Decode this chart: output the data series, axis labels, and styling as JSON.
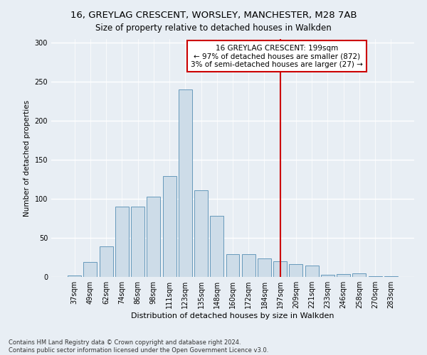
{
  "title": "16, GREYLAG CRESCENT, WORSLEY, MANCHESTER, M28 7AB",
  "subtitle": "Size of property relative to detached houses in Walkden",
  "xlabel": "Distribution of detached houses by size in Walkden",
  "ylabel": "Number of detached properties",
  "categories": [
    "37sqm",
    "49sqm",
    "62sqm",
    "74sqm",
    "86sqm",
    "98sqm",
    "111sqm",
    "123sqm",
    "135sqm",
    "148sqm",
    "160sqm",
    "172sqm",
    "184sqm",
    "197sqm",
    "209sqm",
    "221sqm",
    "233sqm",
    "246sqm",
    "258sqm",
    "270sqm",
    "283sqm"
  ],
  "values": [
    2,
    19,
    39,
    90,
    90,
    103,
    129,
    240,
    111,
    78,
    29,
    29,
    24,
    20,
    16,
    15,
    3,
    4,
    5,
    1,
    1
  ],
  "bar_color": "#cddce8",
  "bar_edge_color": "#6699bb",
  "vline_x_index": 13,
  "vline_color": "#cc0000",
  "annotation_line1": "16 GREYLAG CRESCENT: 199sqm",
  "annotation_line2": "← 97% of detached houses are smaller (872)",
  "annotation_line3": "3% of semi-detached houses are larger (27) →",
  "annotation_box_color": "#cc0000",
  "annotation_bg": "#ffffff",
  "footnote1": "Contains HM Land Registry data © Crown copyright and database right 2024.",
  "footnote2": "Contains public sector information licensed under the Open Government Licence v3.0.",
  "background_color": "#e8eef4",
  "ylim": [
    0,
    305
  ],
  "yticks": [
    0,
    50,
    100,
    150,
    200,
    250,
    300
  ],
  "title_fontsize": 9.5,
  "subtitle_fontsize": 8.5,
  "xlabel_fontsize": 8,
  "ylabel_fontsize": 7.5,
  "tick_fontsize": 7,
  "footnote_fontsize": 6,
  "annot_fontsize": 7.5
}
